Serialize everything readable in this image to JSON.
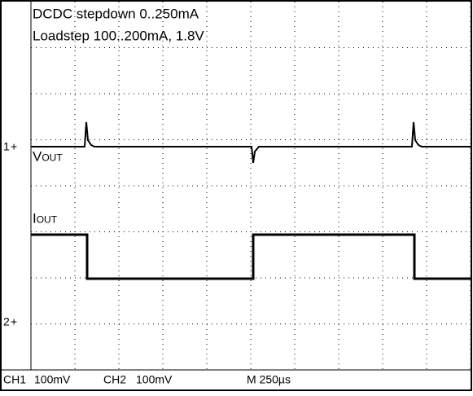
{
  "screen": {
    "title": "DCDC stepdown 0..250mA",
    "subtitle": "Loadstep 100..200mA, 1.8V",
    "markers": [
      "1",
      "2"
    ],
    "trace_labels": [
      "Vout",
      "Iout"
    ],
    "status": [
      "CH1",
      "100mV",
      "CH2",
      "100mV",
      "M 250µs"
    ]
  }
}
